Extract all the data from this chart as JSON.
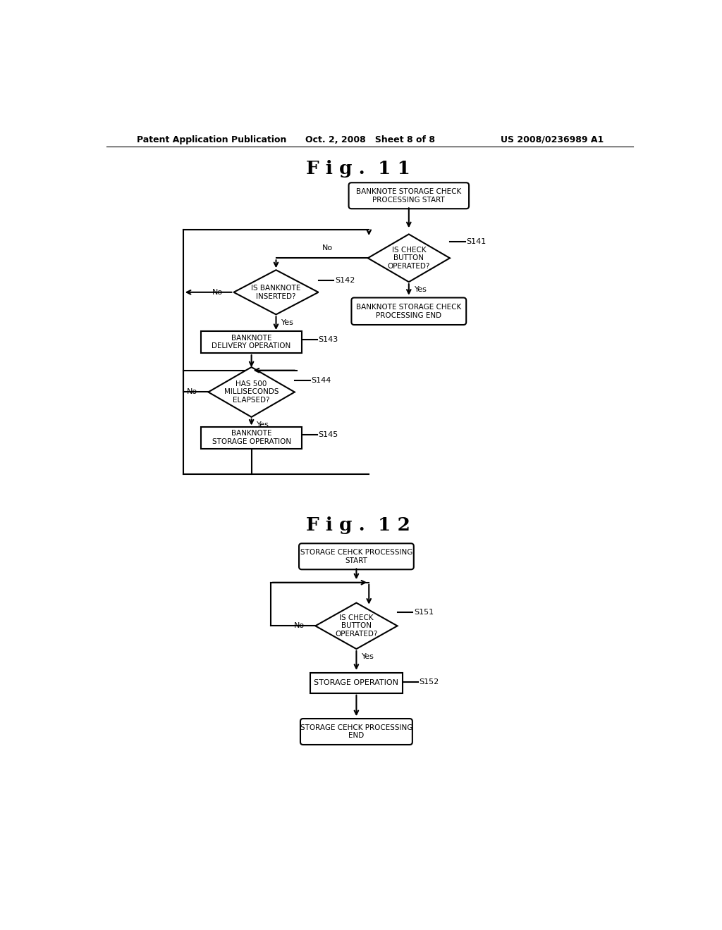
{
  "bg_color": "#ffffff",
  "text_color": "#000000",
  "header_left": "Patent Application Publication",
  "header_center": "Oct. 2, 2008   Sheet 8 of 8",
  "header_right": "US 2008/0236989 A1",
  "fig11_title": "F i g .  1 1",
  "fig12_title": "F i g .  1 2",
  "line_color": "#000000",
  "line_width": 1.5
}
